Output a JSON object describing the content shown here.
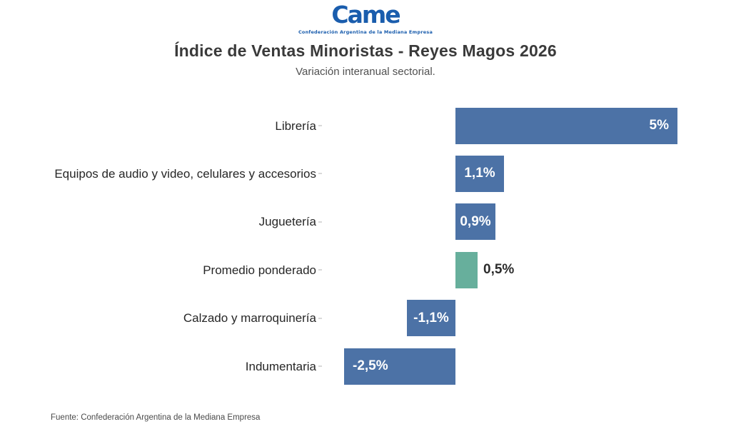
{
  "logo": {
    "name": "CAME",
    "wordmark": "Came",
    "tagline": "Confederación Argentina de la Mediana Empresa",
    "color": "#1a5dad"
  },
  "header": {
    "title": "Índice de Ventas Minoristas - Reyes Magos 2026",
    "subtitle": "Variación interanual sectorial."
  },
  "footer": {
    "source": "Fuente: Confederación Argentina de la Mediana Empresa"
  },
  "colors": {
    "bar_blue": "#4c72a6",
    "bar_green": "#67af9c",
    "value_inside_text": "#ffffff",
    "value_outside_text": "#2b2b2b",
    "logo_blue": "#1a5dad"
  },
  "chart_data": {
    "type": "bar",
    "orientation": "horizontal",
    "title": "Índice de Ventas Minoristas - Reyes Magos 2026",
    "subtitle": "Variación interanual sectorial.",
    "unit": "%",
    "categories": [
      "Librería",
      "Equipos de audio y video, celulares y accesorios",
      "Juguetería",
      "Promedio ponderado",
      "Calzado y marroquinería",
      "Indumentaria"
    ],
    "values": [
      5,
      1.1,
      0.9,
      0.5,
      -1.1,
      -2.5
    ],
    "display_values": [
      "5%",
      "1,1%",
      "0,9%",
      "0,5%",
      "-1,1%",
      "-2,5%"
    ],
    "bar_colors": [
      "#4c72a6",
      "#4c72a6",
      "#4c72a6",
      "#67af9c",
      "#4c72a6",
      "#4c72a6"
    ],
    "value_label_position": [
      "inside-end",
      "inside-center",
      "inside-center",
      "outside-end",
      "inside-center",
      "inside-start"
    ],
    "xlim": [
      -2.5,
      5
    ],
    "grid": false,
    "legend": false,
    "source": "Fuente: Confederación Argentina de la Mediana Empresa"
  }
}
